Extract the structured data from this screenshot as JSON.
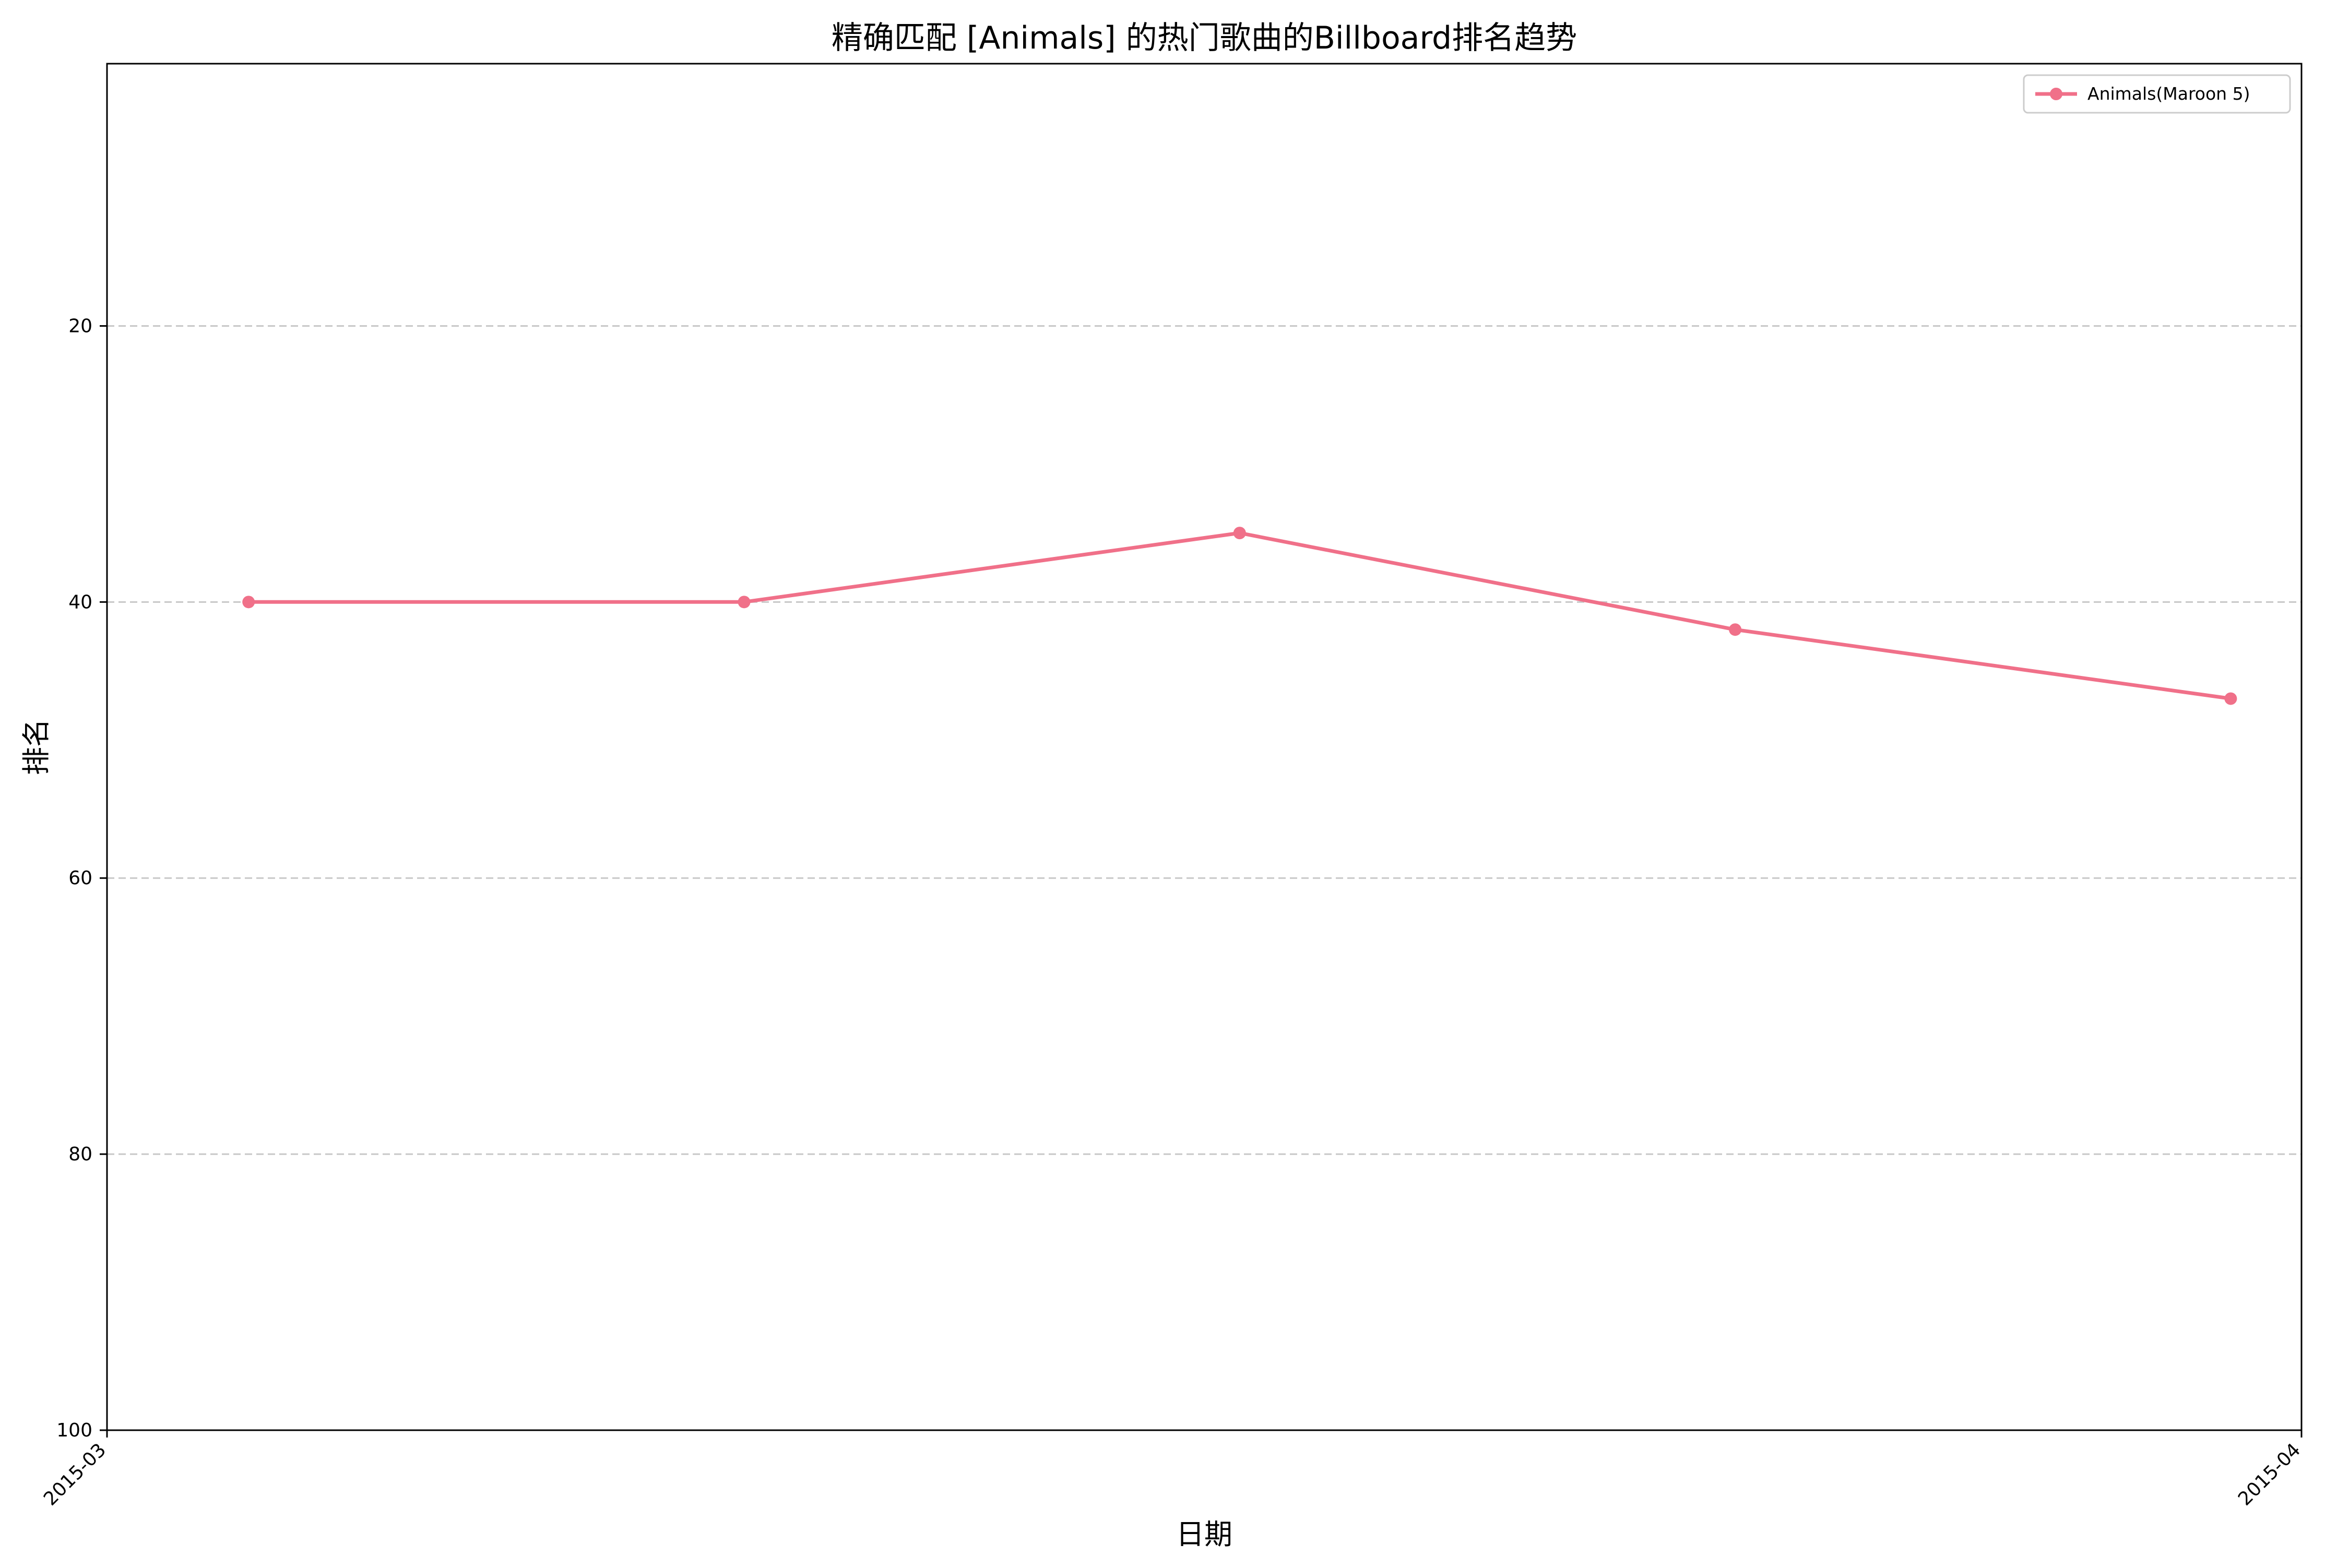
{
  "chart_data": {
    "type": "line",
    "title": "精确匹配 [Animals] 的热门歌曲的Billboard排名趋势",
    "xlabel": "日期",
    "ylabel": "排名",
    "x_type": "date",
    "xlim": [
      "2015-03-01",
      "2015-04-01"
    ],
    "ylim": [
      100,
      1
    ],
    "y_inverted": true,
    "x_ticks": [
      "2015-03",
      "2015-04"
    ],
    "y_ticks": [
      20,
      40,
      60,
      80,
      100
    ],
    "grid": "y-dashed",
    "legend_position": "top-right",
    "series": [
      {
        "name": "Animals(Maroon 5)",
        "color": "#f07089",
        "marker": "circle",
        "x": [
          "2015-03-03",
          "2015-03-10",
          "2015-03-17",
          "2015-03-24",
          "2015-03-31"
        ],
        "values": [
          40,
          40,
          35,
          42,
          47
        ]
      }
    ]
  }
}
